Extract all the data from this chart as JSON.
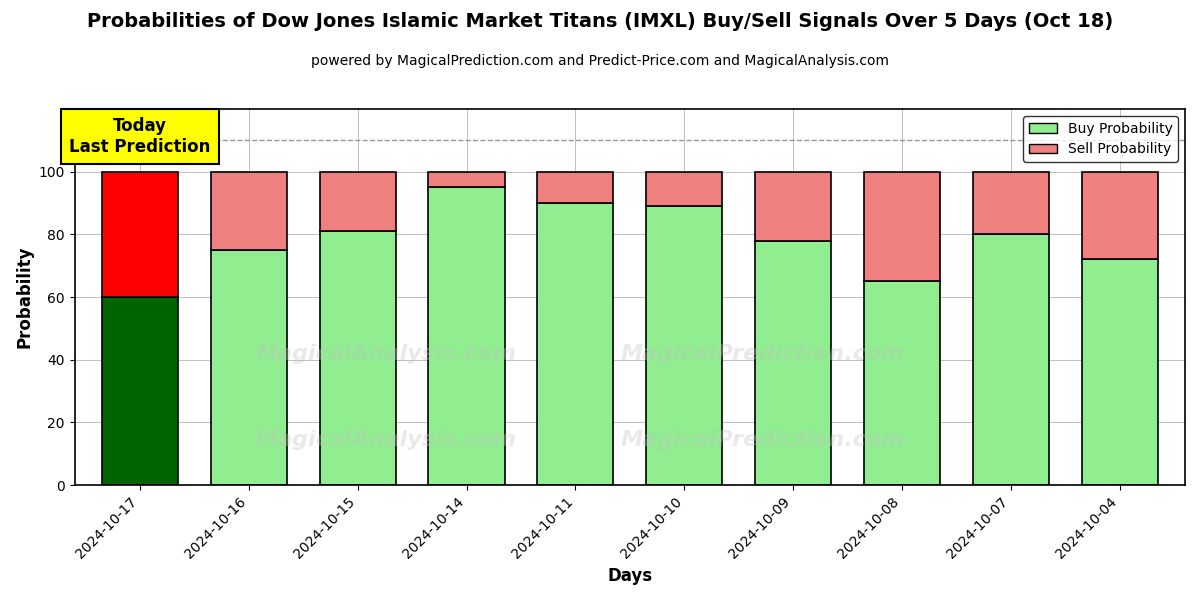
{
  "title": "Probabilities of Dow Jones Islamic Market Titans (IMXL) Buy/Sell Signals Over 5 Days (Oct 18)",
  "subtitle": "powered by MagicalPrediction.com and Predict-Price.com and MagicalAnalysis.com",
  "xlabel": "Days",
  "ylabel": "Probability",
  "ylim": [
    0,
    120
  ],
  "yticks": [
    0,
    20,
    40,
    60,
    80,
    100
  ],
  "dashed_line_y": 110,
  "dates": [
    "2024-10-17",
    "2024-10-16",
    "2024-10-15",
    "2024-10-14",
    "2024-10-11",
    "2024-10-10",
    "2024-10-09",
    "2024-10-08",
    "2024-10-07",
    "2024-10-04"
  ],
  "buy_values": [
    60,
    75,
    81,
    95,
    90,
    89,
    78,
    65,
    80,
    72
  ],
  "sell_values": [
    40,
    25,
    19,
    5,
    10,
    11,
    22,
    35,
    20,
    28
  ],
  "today_index": 0,
  "buy_color_today": "#006400",
  "sell_color_today": "#FF0000",
  "buy_color_normal": "#90EE90",
  "sell_color_normal": "#F08080",
  "bar_edge_color": "#000000",
  "bar_edge_width": 1.2,
  "today_annotation_text": "Today\nLast Prediction",
  "today_annotation_bg": "#FFFF00",
  "legend_buy_label": "Buy Probability",
  "legend_sell_label": "Sell Probability",
  "watermark_color": "#C0C0C0",
  "watermark_alpha": 0.35,
  "grid_color": "#808080",
  "grid_alpha": 0.5,
  "title_fontsize": 14,
  "subtitle_fontsize": 10,
  "axis_label_fontsize": 12,
  "tick_fontsize": 10,
  "background_color": "#FFFFFF"
}
